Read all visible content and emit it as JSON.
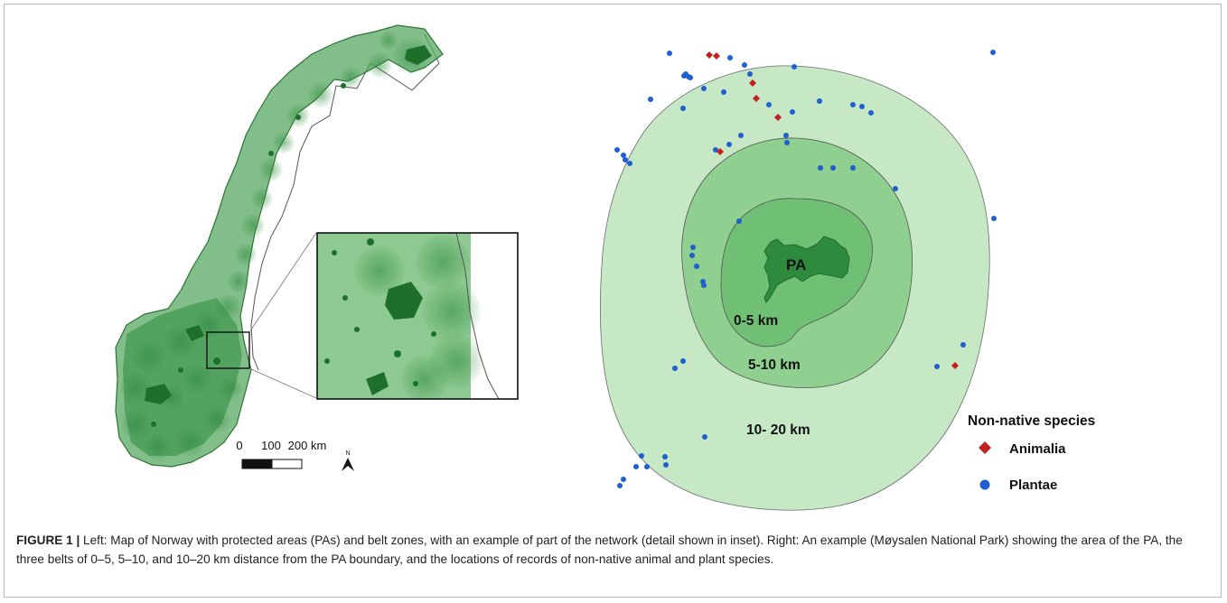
{
  "left_panel": {
    "scale_bar": {
      "tick_labels": [
        "0",
        "100",
        "200 km"
      ],
      "north_label": "N"
    }
  },
  "right_panel": {
    "zones": [
      {
        "label": "PA",
        "color": "#2e8b3e"
      },
      {
        "label": "0-5 km",
        "color": "#6fbf75"
      },
      {
        "label": "5-10 km",
        "color": "#8fcf8f"
      },
      {
        "label": "10- 20 km",
        "color": "#c6e8c5"
      }
    ],
    "legend": {
      "title": "Non-native species",
      "items": [
        {
          "label": "Animalia",
          "symbol": "diamond",
          "color": "#c21f1f"
        },
        {
          "label": "Plantae",
          "symbol": "circle",
          "color": "#1f5fd1"
        }
      ]
    }
  },
  "caption": {
    "label": "FIGURE 1 |",
    "text": " Left: Map of Norway with protected areas (PAs) and belt zones, with an example of part of the network (detail shown in inset). Right: An example (Møysalen National Park) showing the area of the PA, the three belts of 0–5, 5–10, and 10–20 km distance from the PA boundary, and the locations of records of non-native animal and plant species."
  }
}
